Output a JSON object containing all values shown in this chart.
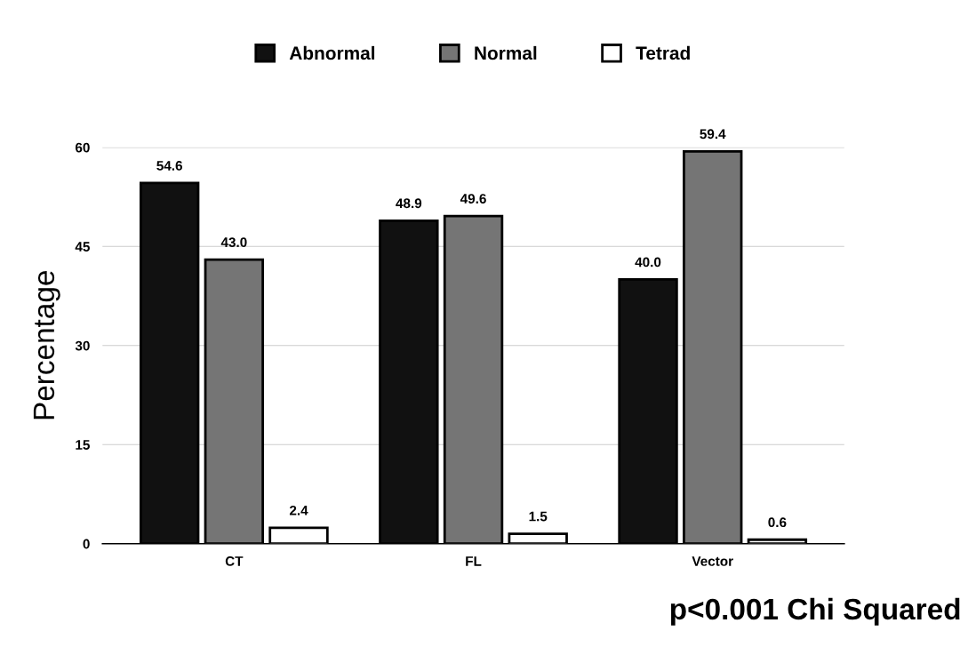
{
  "chart_data": {
    "type": "bar",
    "categories": [
      "CT",
      "FL",
      "Vector"
    ],
    "series": [
      {
        "name": "Abnormal",
        "color": "#111111",
        "values": [
          54.6,
          48.9,
          40.0
        ],
        "value_labels": [
          "54.6",
          "48.9",
          "40.0"
        ]
      },
      {
        "name": "Normal",
        "color": "#757575",
        "values": [
          43.0,
          49.6,
          59.4
        ],
        "value_labels": [
          "43.0",
          "49.6",
          "59.4"
        ]
      },
      {
        "name": "Tetrad",
        "color": "#ffffff",
        "values": [
          2.4,
          1.5,
          0.6
        ],
        "value_labels": [
          "2.4",
          "1.5",
          "0.6"
        ]
      }
    ],
    "ylabel": "Percentage",
    "ylim": [
      0,
      60
    ],
    "yticks": [
      0,
      15,
      30,
      45,
      60
    ],
    "grid": "y",
    "legend": "top",
    "annotations": [
      "p<0.001 Chi Squared"
    ]
  }
}
